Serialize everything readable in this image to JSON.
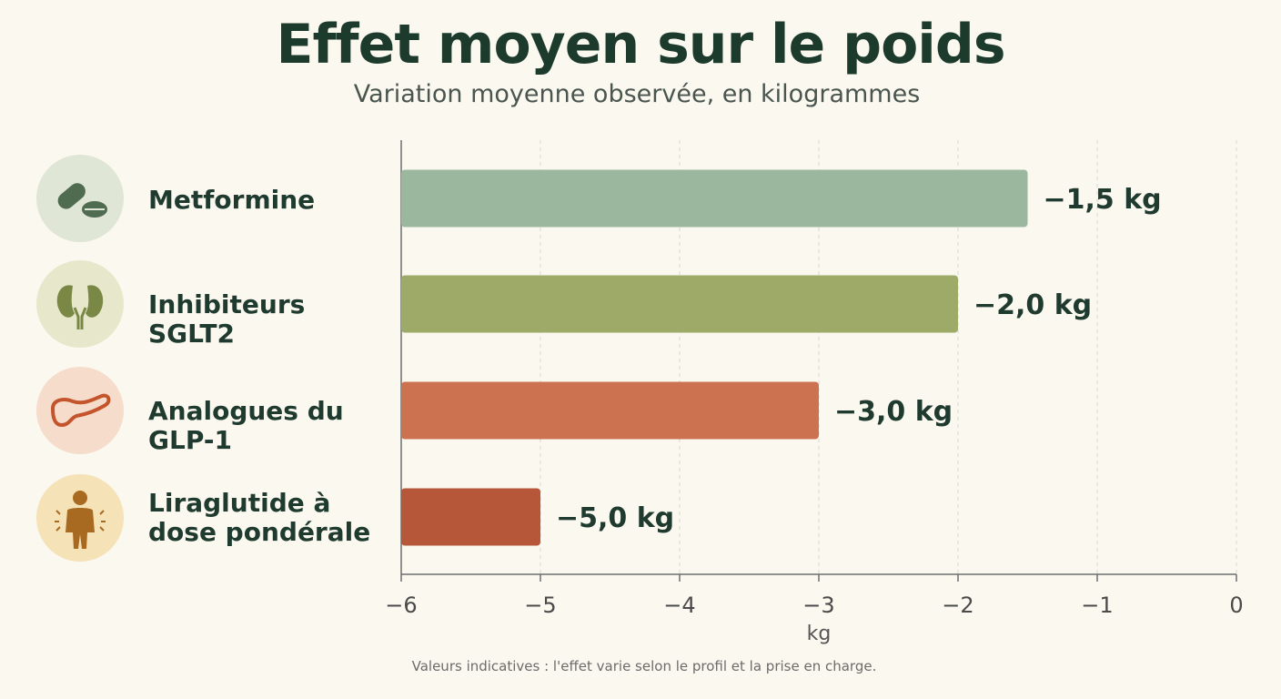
{
  "title": "Effet moyen sur le poids",
  "subtitle": "Variation moyenne observée, en kilogrammes",
  "footnote": "Valeurs indicatives : l'effet varie selon le profil et la prise en charge.",
  "icons": [
    {
      "name": "pill-icon",
      "bg": "#dfe6d6",
      "fg": "#4f6b50"
    },
    {
      "name": "kidney-icon",
      "bg": "#e7e8cb",
      "fg": "#7a8845"
    },
    {
      "name": "pancreas-icon",
      "bg": "#f6dccb",
      "fg": "#c4542c"
    },
    {
      "name": "person-icon",
      "bg": "#f5e2b7",
      "fg": "#a86a20"
    }
  ],
  "chart_data": {
    "type": "bar",
    "orientation": "horizontal",
    "title": "Effet moyen sur le poids",
    "subtitle": "Variation moyenne observée, en kilogrammes",
    "categories": [
      "Metformine",
      "Inhibiteurs SGLT2",
      "Analogues du GLP-1",
      "Liraglutide à dose pondérale"
    ],
    "values": [
      -1.5,
      -2.0,
      -3.0,
      -5.0
    ],
    "value_labels": [
      "−1,5 kg",
      "−2,0 kg",
      "−3,0 kg",
      "−5,0 kg"
    ],
    "colors": [
      "#9bb89f",
      "#9daa68",
      "#cc7250",
      "#b6573a"
    ],
    "xlabel": "kg",
    "xlim": [
      -6,
      0
    ],
    "x_ticks": [
      -6,
      -5,
      -4,
      -3,
      -2,
      -1,
      0
    ],
    "x_tick_labels": [
      "−6",
      "−5",
      "−4",
      "−3",
      "−2",
      "−1",
      "0"
    ],
    "grid": true,
    "legend": "none"
  }
}
